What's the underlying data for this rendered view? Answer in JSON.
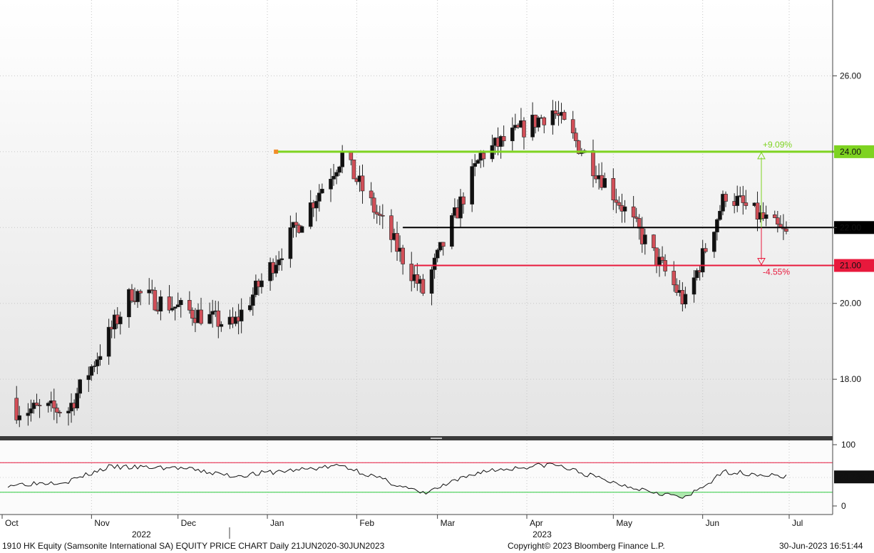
{
  "footer": {
    "description": "1910 HK Equity (Samsonite International SA) EQUITY PRICE CHART  Daily 21JUN2020-30JUN2023",
    "copyright": "Copyright© 2023 Bloomberg Finance L.P.",
    "timestamp": "30-Jun-2023 16:51:44"
  },
  "chart_data": {
    "type": "candlestick",
    "ylim": [
      16.5,
      28
    ],
    "yticks": [
      18.0,
      20.0,
      22.0,
      26.0
    ],
    "ytick_labels": [
      "18.00",
      "20.00",
      "22.00",
      "26.00"
    ],
    "month_labels": [
      {
        "label": "Oct",
        "date": "2022-10-01"
      },
      {
        "label": "Nov",
        "date": "2022-11-01"
      },
      {
        "label": "Dec",
        "date": "2022-12-01"
      },
      {
        "label": "Jan",
        "date": "2023-01-01"
      },
      {
        "label": "Feb",
        "date": "2023-02-01"
      },
      {
        "label": "Mar",
        "date": "2023-03-01"
      },
      {
        "label": "Apr",
        "date": "2023-04-01"
      },
      {
        "label": "May",
        "date": "2023-05-01"
      },
      {
        "label": "Jun",
        "date": "2023-06-01"
      },
      {
        "label": "Jul",
        "date": "2023-07-01"
      }
    ],
    "year_labels": [
      {
        "label": "2022",
        "date": "2022-11-15"
      },
      {
        "label": "2023",
        "date": "2023-04-03"
      }
    ],
    "levels": [
      {
        "value": 24.0,
        "label": "24.00",
        "color": "#7ed321",
        "start": "2023-01-04",
        "pct": "+9.09%"
      },
      {
        "value": 22.0,
        "label": "22.00",
        "color": "#000000",
        "start": "2023-02-17"
      },
      {
        "value": 21.0,
        "label": "21.00",
        "color": "#e8193c",
        "start": "2023-02-21",
        "pct": "-4.55%"
      }
    ],
    "key_points": [
      {
        "date": "2022-10-24",
        "close": 17.2
      },
      {
        "date": "2022-11-15",
        "close": 20.3
      },
      {
        "date": "2022-12-20",
        "close": 19.4
      },
      {
        "date": "2023-01-27",
        "close": 23.9
      },
      {
        "date": "2023-02-24",
        "close": 20.3
      },
      {
        "date": "2023-03-16",
        "close": 23.9
      },
      {
        "date": "2023-04-10",
        "close": 25.1
      },
      {
        "date": "2023-05-02",
        "close": 22.8
      },
      {
        "date": "2023-05-26",
        "close": 20.0
      },
      {
        "date": "2023-06-09",
        "close": 22.9
      },
      {
        "date": "2023-06-30",
        "close": 21.8
      }
    ],
    "rsi": {
      "ylim": [
        0,
        100
      ],
      "yticks": [
        0,
        100
      ],
      "ytick_labels": [
        "0",
        "100"
      ],
      "overbought": 70,
      "oversold": 30,
      "last": "50.7357",
      "key_points": [
        {
          "date": "2022-10-03",
          "v": 40
        },
        {
          "date": "2022-10-24",
          "v": 45
        },
        {
          "date": "2022-11-07",
          "v": 64
        },
        {
          "date": "2022-12-01",
          "v": 63
        },
        {
          "date": "2022-12-20",
          "v": 52
        },
        {
          "date": "2023-01-27",
          "v": 66
        },
        {
          "date": "2023-02-24",
          "v": 28
        },
        {
          "date": "2023-03-16",
          "v": 58
        },
        {
          "date": "2023-04-10",
          "v": 68
        },
        {
          "date": "2023-05-02",
          "v": 42
        },
        {
          "date": "2023-05-26",
          "v": 22
        },
        {
          "date": "2023-06-09",
          "v": 58
        },
        {
          "date": "2023-06-30",
          "v": 51
        }
      ]
    }
  }
}
